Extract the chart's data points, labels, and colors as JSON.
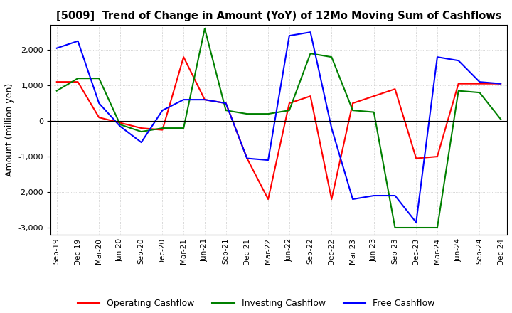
{
  "title": "[5009]  Trend of Change in Amount (YoY) of 12Mo Moving Sum of Cashflows",
  "ylabel": "Amount (million yen)",
  "ylim": [
    -3200,
    2700
  ],
  "yticks": [
    -3000,
    -2000,
    -1000,
    0,
    1000,
    2000
  ],
  "x_labels": [
    "Sep-19",
    "Dec-19",
    "Mar-20",
    "Jun-20",
    "Sep-20",
    "Dec-20",
    "Mar-21",
    "Jun-21",
    "Sep-21",
    "Dec-21",
    "Mar-22",
    "Jun-22",
    "Sep-22",
    "Dec-22",
    "Mar-23",
    "Jun-23",
    "Sep-23",
    "Dec-23",
    "Mar-24",
    "Jun-24",
    "Sep-24",
    "Dec-24"
  ],
  "operating": [
    1100,
    1100,
    100,
    -50,
    -200,
    -250,
    1800,
    600,
    500,
    -1050,
    -2200,
    500,
    700,
    -2200,
    500,
    700,
    900,
    -1050,
    -1000,
    1050,
    1050,
    1050
  ],
  "investing": [
    850,
    1200,
    1200,
    -100,
    -300,
    -200,
    -200,
    2600,
    300,
    200,
    200,
    300,
    1900,
    1800,
    300,
    250,
    -3000,
    -3000,
    -3000,
    850,
    800,
    50
  ],
  "free": [
    2050,
    2250,
    500,
    -150,
    -600,
    300,
    600,
    600,
    500,
    -1050,
    -1100,
    2400,
    2500,
    -200,
    -2200,
    -2100,
    -2100,
    -2850,
    1800,
    1700,
    1100,
    1050
  ],
  "op_color": "#ff0000",
  "inv_color": "#008000",
  "free_color": "#0000ff",
  "background": "#ffffff",
  "grid_color": "#c8c8c8"
}
